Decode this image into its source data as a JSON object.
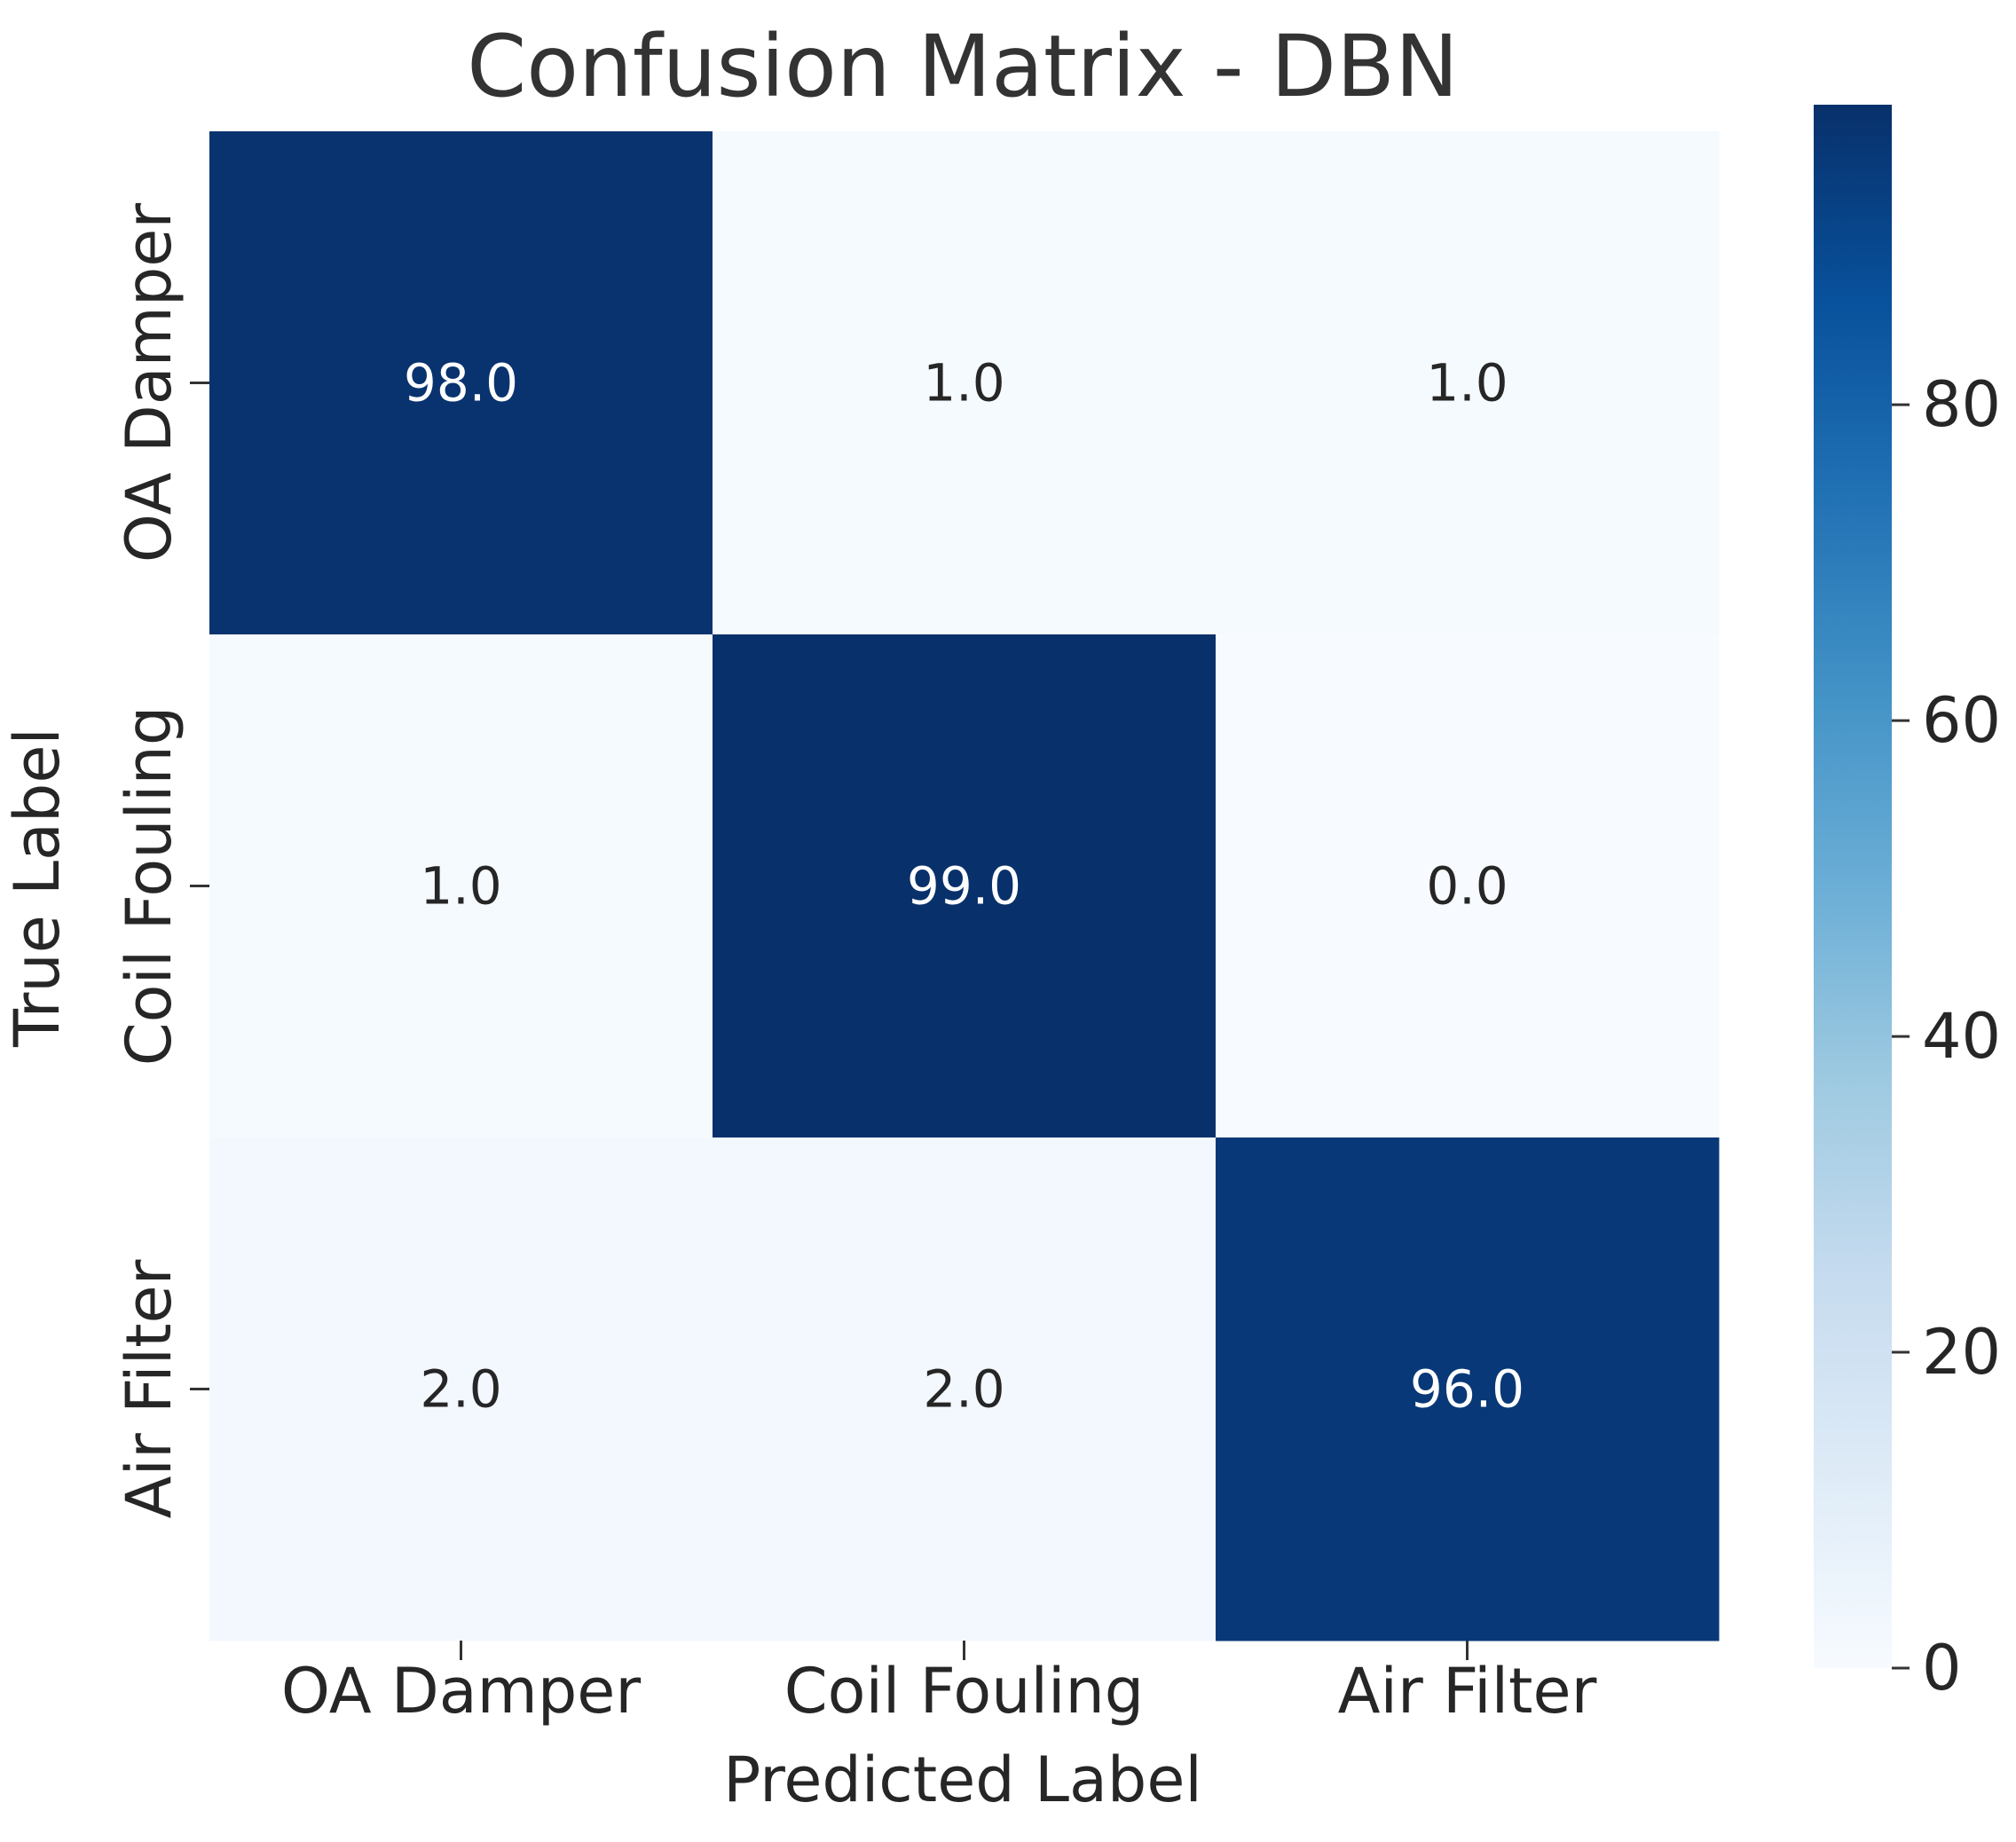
{
  "chart_data": {
    "type": "heatmap",
    "title": "Confusion Matrix - DBN",
    "xlabel": "Predicted Label",
    "ylabel": "True Label",
    "x_categories": [
      "OA Damper",
      "Coil Fouling",
      "Air Filter"
    ],
    "y_categories": [
      "OA Damper",
      "Coil Fouling",
      "Air Filter"
    ],
    "values": [
      [
        98.0,
        1.0,
        1.0
      ],
      [
        1.0,
        99.0,
        0.0
      ],
      [
        2.0,
        2.0,
        96.0
      ]
    ],
    "value_labels": [
      [
        "98.0",
        "1.0",
        "1.0"
      ],
      [
        "1.0",
        "99.0",
        "0.0"
      ],
      [
        "2.0",
        "2.0",
        "96.0"
      ]
    ],
    "colorbar": {
      "range": [
        0,
        99
      ],
      "ticks": [
        0,
        20,
        40,
        60,
        80
      ],
      "colormap": "Blues"
    },
    "grid": false
  },
  "colors": {
    "text_dark": "#262626",
    "text_light": "#ffffff",
    "title": "#333333"
  }
}
